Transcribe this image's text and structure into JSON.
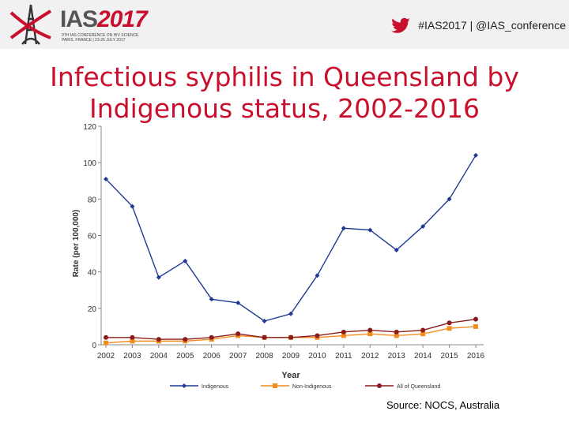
{
  "header": {
    "logo_name": "IAS",
    "logo_year": "2017",
    "logo_subtitle_line1": "9TH IAS CONFERENCE ON HIV SCIENCE",
    "logo_subtitle_line2": "PARIS, FRANCE | 23-26 JULY 2017",
    "hashtag": "#IAS2017 | @IAS_conference",
    "icons": [
      "eiffel-tower-logo",
      "twitter-bird-icon"
    ],
    "accent_color": "#c8102e"
  },
  "slide": {
    "title_line1": "Infectious syphilis in Queensland by",
    "title_line2": "Indigenous status, 2002-2016",
    "source": "Source: NOCS, Australia"
  },
  "chart_data": {
    "type": "line",
    "title": "",
    "xlabel": "Year",
    "ylabel": "Rate (per 100,000)",
    "ylim": [
      0,
      120
    ],
    "yticks": [
      0,
      20,
      40,
      60,
      80,
      100,
      120
    ],
    "grid": false,
    "legend_position": "bottom",
    "x": [
      "2002",
      "2003",
      "2004",
      "2005",
      "2006",
      "2007",
      "2008",
      "2009",
      "2010",
      "2011",
      "2012",
      "2013",
      "2014",
      "2015",
      "2016"
    ],
    "series": [
      {
        "name": "Indigenous",
        "color": "#1f3a93",
        "marker": "diamond",
        "values": [
          91,
          76,
          37,
          46,
          25,
          23,
          13,
          17,
          38,
          64,
          63,
          52,
          65,
          80,
          104
        ]
      },
      {
        "name": "Non-Indigenous",
        "color": "#f28c1e",
        "marker": "square",
        "values": [
          1,
          2,
          2,
          2,
          3,
          5,
          4,
          4,
          4,
          5,
          6,
          5,
          6,
          9,
          10
        ]
      },
      {
        "name": "All of Queensland",
        "color": "#8b1a1a",
        "marker": "circle",
        "values": [
          4,
          4,
          3,
          3,
          4,
          6,
          4,
          4,
          5,
          7,
          8,
          7,
          8,
          12,
          14
        ]
      }
    ]
  }
}
